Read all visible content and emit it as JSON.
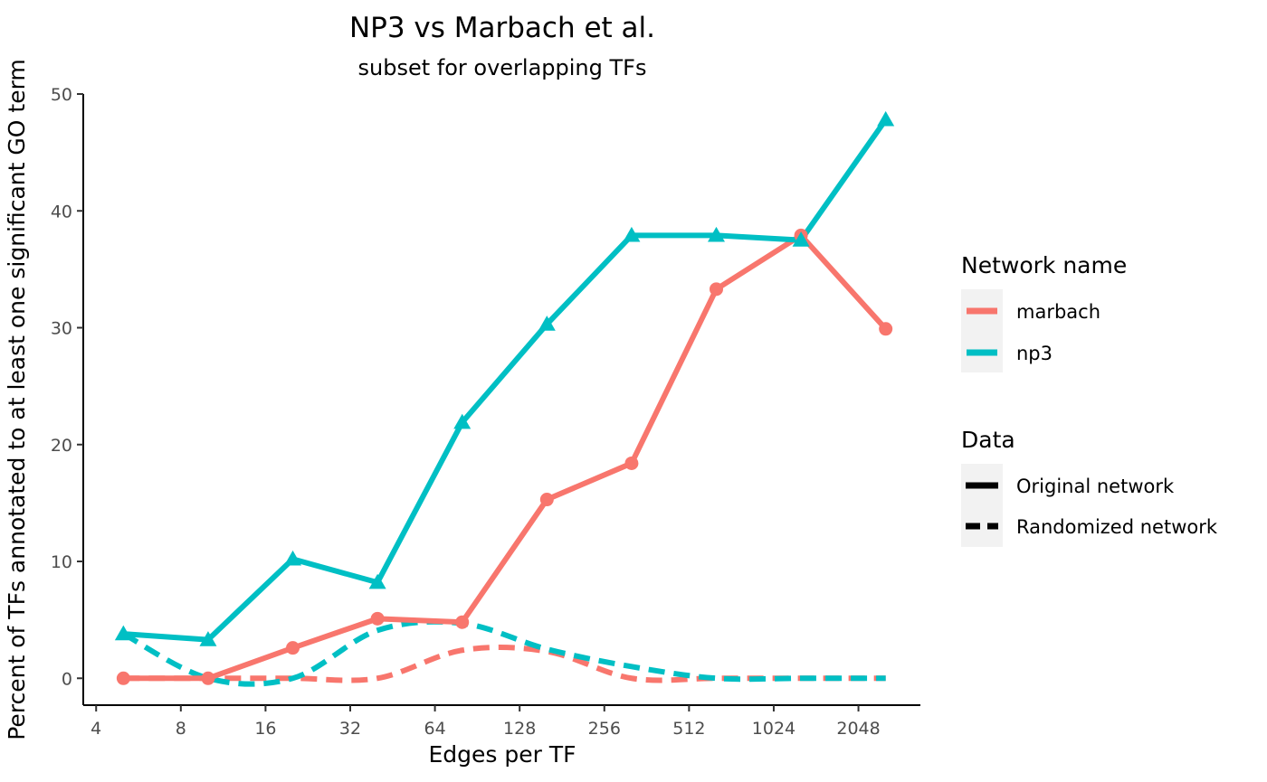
{
  "chart_data": {
    "type": "line",
    "title": "NP3 vs Marbach et al.",
    "subtitle": "subset for overlapping TFs",
    "xlabel": "Edges per TF",
    "ylabel": "Percent of TFs annotated to at least one significant GO term",
    "x_scale": "log2",
    "xlim": [
      3.6,
      3400
    ],
    "ylim": [
      -2.3,
      50
    ],
    "x_ticks": [
      4,
      8,
      16,
      32,
      64,
      128,
      256,
      512,
      1024,
      2048
    ],
    "x_tick_labels": [
      "4",
      "8",
      "16",
      "32",
      "64",
      "128",
      "256",
      "512",
      "1024",
      "2048"
    ],
    "y_ticks": [
      0,
      10,
      20,
      30,
      40,
      50
    ],
    "y_tick_labels": [
      "0",
      "10",
      "20",
      "30",
      "40",
      "50"
    ],
    "x": [
      5,
      10,
      20,
      40,
      80,
      160,
      320,
      640,
      1280,
      2560
    ],
    "grid": false,
    "legend_placement": "right",
    "series": [
      {
        "name": "marbach",
        "data": "Original network",
        "color": "#F8766D",
        "marker": "circle",
        "dash": "solid",
        "values": [
          0,
          0,
          2.6,
          5.1,
          4.8,
          15.3,
          18.4,
          33.3,
          37.9,
          29.9
        ]
      },
      {
        "name": "np3",
        "data": "Original network",
        "color": "#00BFC4",
        "marker": "triangle",
        "dash": "solid",
        "values": [
          3.8,
          3.3,
          10.2,
          8.2,
          21.9,
          30.3,
          37.9,
          37.9,
          37.5,
          47.8
        ]
      },
      {
        "name": "marbach",
        "data": "Randomized network",
        "color": "#F8766D",
        "marker": "none",
        "dash": "dashed",
        "values": [
          0,
          0,
          0,
          0,
          2.4,
          2.3,
          0,
          0,
          0,
          0
        ]
      },
      {
        "name": "np3",
        "data": "Randomized network",
        "color": "#00BFC4",
        "marker": "none",
        "dash": "dashed",
        "values": [
          3.8,
          0,
          0,
          4.1,
          4.7,
          2.5,
          1.0,
          0,
          0,
          0
        ]
      }
    ],
    "legend": {
      "network": {
        "title": "Network name",
        "entries": [
          {
            "label": "marbach",
            "color": "#F8766D"
          },
          {
            "label": "np3",
            "color": "#00BFC4"
          }
        ]
      },
      "data": {
        "title": "Data",
        "entries": [
          {
            "label": "Original network",
            "dash": "solid"
          },
          {
            "label": "Randomized network",
            "dash": "dashed"
          }
        ]
      }
    }
  }
}
